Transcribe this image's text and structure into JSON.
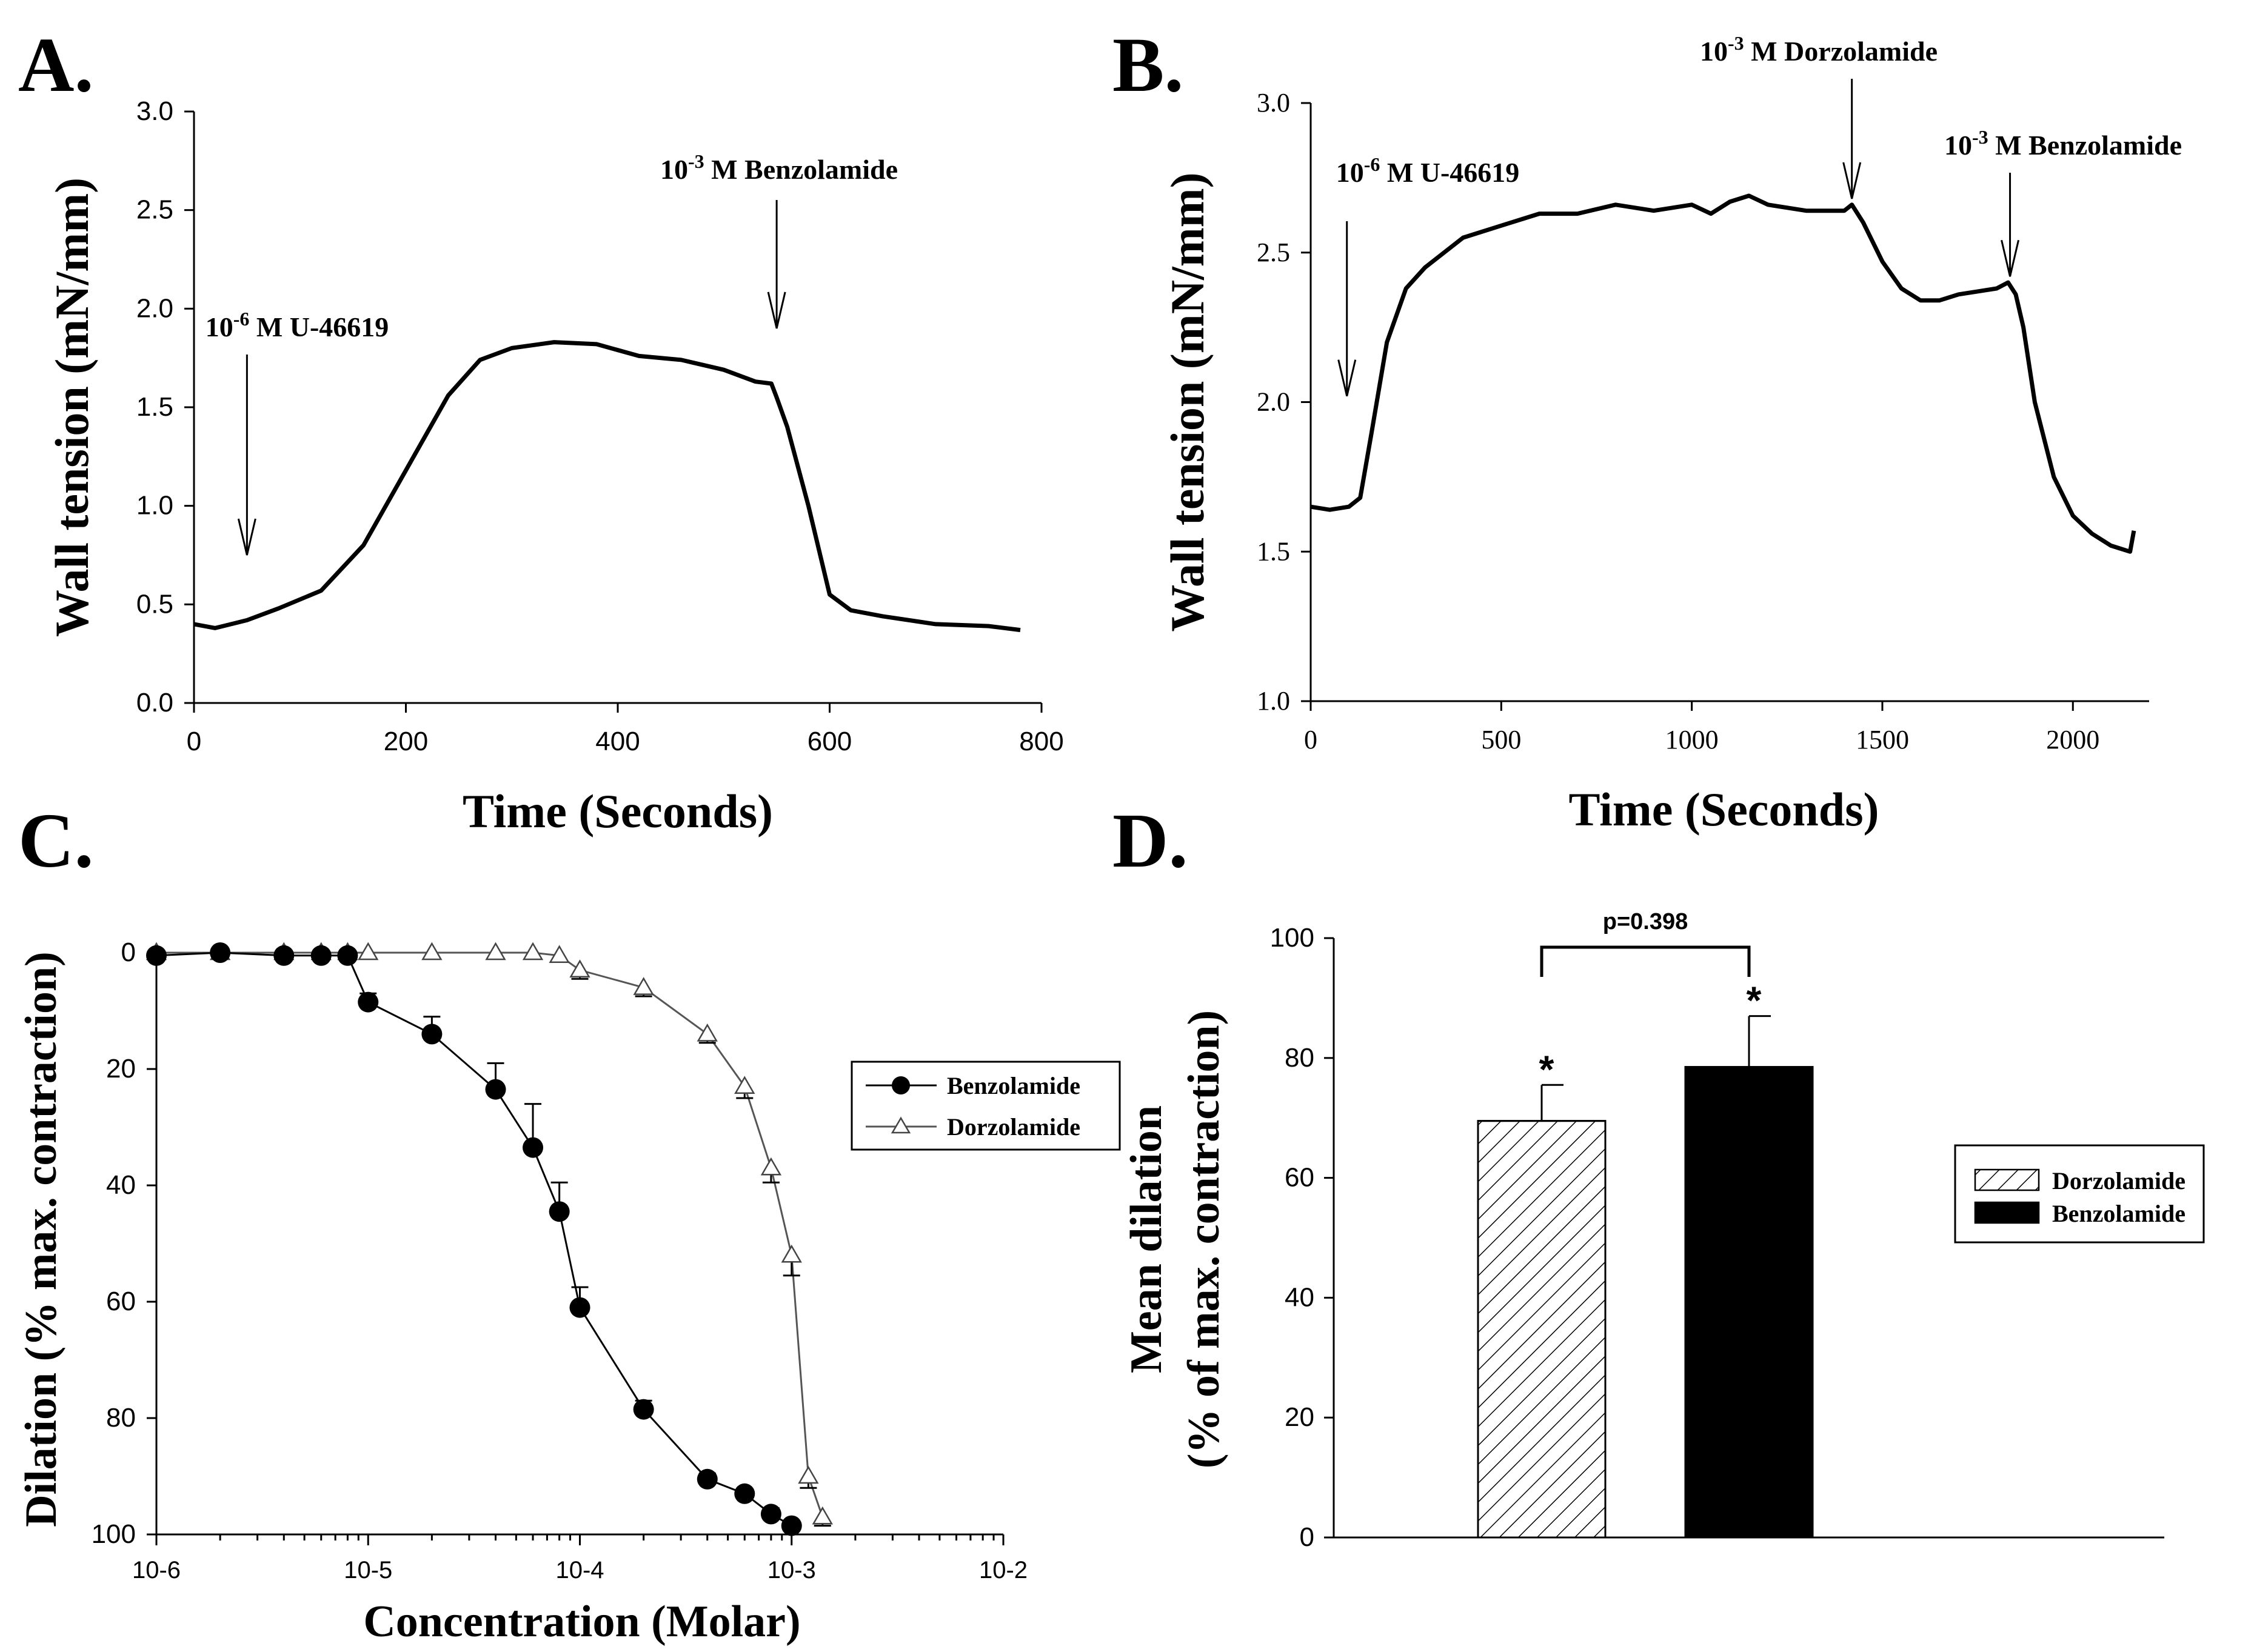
{
  "panels": {
    "a": {
      "letter": "A."
    },
    "b": {
      "letter": "B."
    },
    "c": {
      "letter": "C."
    },
    "d": {
      "letter": "D."
    }
  },
  "chart_data": [
    {
      "id": "A",
      "type": "line",
      "xlabel": "Time (Seconds)",
      "ylabel": "Wall tension (mN/mm)",
      "xlim": [
        0,
        800
      ],
      "ylim": [
        0,
        3.0
      ],
      "xticks": [
        0,
        200,
        400,
        600,
        800
      ],
      "yticks": [
        0.0,
        0.5,
        1.0,
        1.5,
        2.0,
        2.5,
        3.0
      ],
      "ytick_labels": [
        "0.0",
        "0.5",
        "1.0",
        "1.5",
        "2.0",
        "2.5",
        "3.0"
      ],
      "series": [
        {
          "name": "tension",
          "x": [
            0,
            20,
            50,
            80,
            120,
            160,
            200,
            240,
            270,
            300,
            340,
            380,
            420,
            460,
            500,
            530,
            545,
            550,
            560,
            580,
            600,
            620,
            650,
            700,
            750,
            780
          ],
          "y": [
            0.4,
            0.38,
            0.42,
            0.48,
            0.57,
            0.8,
            1.18,
            1.56,
            1.74,
            1.8,
            1.83,
            1.82,
            1.76,
            1.74,
            1.69,
            1.63,
            1.62,
            1.55,
            1.4,
            1.0,
            0.55,
            0.47,
            0.44,
            0.4,
            0.39,
            0.37
          ]
        }
      ],
      "annotations": [
        {
          "base": "10",
          "exp": "-6",
          "rest": " M U-46619",
          "x": 50,
          "arrow_tip": 0.75
        },
        {
          "base": "10",
          "exp": "-3",
          "rest": " M Benzolamide",
          "x": 550,
          "arrow_tip": 1.9
        }
      ]
    },
    {
      "id": "B",
      "type": "line",
      "xlabel": "Time (Seconds)",
      "ylabel": "Wall tension (mN/mm)",
      "xlim": [
        0,
        2200
      ],
      "ylim": [
        1.0,
        3.0
      ],
      "xticks": [
        0,
        500,
        1000,
        1500,
        2000
      ],
      "yticks": [
        1.0,
        1.5,
        2.0,
        2.5,
        3.0
      ],
      "ytick_labels": [
        "1.0",
        "1.5",
        "2.0",
        "2.5",
        "3.0"
      ],
      "series": [
        {
          "name": "tension",
          "x": [
            0,
            50,
            100,
            130,
            160,
            200,
            250,
            300,
            400,
            500,
            600,
            700,
            800,
            900,
            1000,
            1050,
            1100,
            1150,
            1200,
            1300,
            1400,
            1420,
            1450,
            1500,
            1550,
            1600,
            1650,
            1700,
            1750,
            1800,
            1830,
            1850,
            1870,
            1900,
            1950,
            2000,
            2050,
            2100,
            2150,
            2160
          ],
          "y": [
            1.65,
            1.64,
            1.65,
            1.68,
            1.9,
            2.2,
            2.38,
            2.45,
            2.55,
            2.59,
            2.63,
            2.63,
            2.66,
            2.64,
            2.66,
            2.63,
            2.67,
            2.69,
            2.66,
            2.64,
            2.64,
            2.66,
            2.6,
            2.47,
            2.38,
            2.34,
            2.34,
            2.36,
            2.37,
            2.38,
            2.4,
            2.36,
            2.25,
            2.0,
            1.75,
            1.62,
            1.56,
            1.52,
            1.5,
            1.57
          ]
        }
      ],
      "annotations": [
        {
          "base": "10",
          "exp": "-6",
          "rest": " M U-46619",
          "x": 95,
          "arrow_tip": 2.02
        },
        {
          "base": "10",
          "exp": "-3",
          "rest": " M Dorzolamide",
          "x": 1420,
          "arrow_tip": 2.68
        },
        {
          "base": "10",
          "exp": "-3",
          "rest": " M Benzolamide",
          "x": 1835,
          "arrow_tip": 2.42
        }
      ]
    },
    {
      "id": "C",
      "type": "line",
      "xscale": "log",
      "xlabel": "Concentration (Molar)",
      "ylabel": "Dilation (% max. contraction)",
      "xlim": [
        1e-06,
        0.01
      ],
      "ylim": [
        0,
        100
      ],
      "yaxis_inverted": true,
      "xtick_labels": [
        "10-6",
        "10-5",
        "10-4",
        "10-3",
        "10-2"
      ],
      "yticks": [
        0,
        20,
        40,
        60,
        80,
        100
      ],
      "ytick_labels": [
        "0",
        "20",
        "40",
        "60",
        "80",
        "100"
      ],
      "legend": "right",
      "series": [
        {
          "name": "Benzolamide",
          "marker": "filled-circle",
          "x": [
            1e-06,
            2e-06,
            4e-06,
            6e-06,
            8e-06,
            1e-05,
            2e-05,
            4e-05,
            6e-05,
            8e-05,
            0.0001,
            0.0002,
            0.0004,
            0.0006,
            0.0008,
            0.001
          ],
          "y": [
            0.5,
            0,
            0.5,
            0.5,
            0.5,
            8.5,
            14,
            23.5,
            33.5,
            44.5,
            61,
            78.5,
            90.5,
            93,
            96.5,
            98.5
          ],
          "err": [
            0,
            0,
            0,
            0,
            0,
            1.5,
            3,
            4.5,
            7.5,
            5,
            3.5,
            1.5,
            1,
            0.5,
            1,
            0.5
          ]
        },
        {
          "name": "Dorzolamide",
          "marker": "open-triangle",
          "x": [
            1e-06,
            2e-06,
            4e-06,
            6e-06,
            8e-06,
            1e-05,
            2e-05,
            4e-05,
            6e-05,
            8e-05,
            0.0001,
            0.0002,
            0.0004,
            0.0006,
            0.0008,
            0.001,
            0.0012,
            0.0014
          ],
          "y": [
            0,
            0,
            0,
            0,
            0,
            0,
            0,
            0,
            0,
            0.5,
            3,
            6,
            14,
            23,
            37,
            52,
            90,
            97
          ],
          "err": [
            0,
            0,
            0,
            0,
            0,
            0,
            0,
            0,
            0,
            1,
            1.5,
            1.5,
            1.5,
            2,
            2.5,
            3.5,
            2,
            1.5
          ]
        }
      ]
    },
    {
      "id": "D",
      "type": "bar",
      "ylabel": "Mean dilation",
      "ylabel2": "(% of max. contraction)",
      "ylim": [
        0,
        100
      ],
      "yticks": [
        0,
        20,
        40,
        60,
        80,
        100
      ],
      "ytick_labels": [
        "0",
        "20",
        "40",
        "60",
        "80",
        "100"
      ],
      "categories": [
        "Dorzolamide",
        "Benzolamide"
      ],
      "values": [
        69.5,
        78.5
      ],
      "errors": [
        6,
        8.5
      ],
      "significance": [
        "*",
        "*"
      ],
      "bracket_label": "p=0.398",
      "legend": "right"
    }
  ]
}
